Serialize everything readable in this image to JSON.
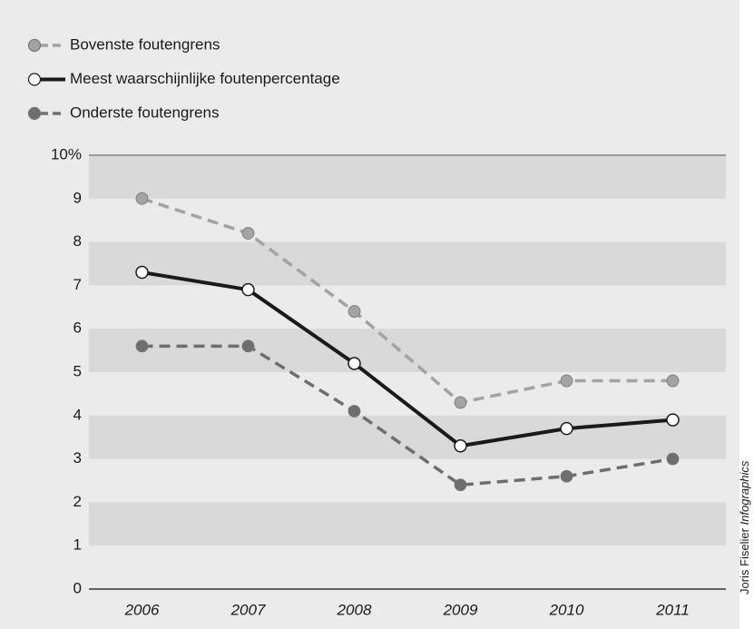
{
  "chart_data": {
    "type": "line",
    "categories": [
      "2006",
      "2007",
      "2008",
      "2009",
      "2010",
      "2011"
    ],
    "series": [
      {
        "name": "Bovenste foutengrens",
        "color": "#a3a3a3",
        "marker_fill": "#a3a3a3",
        "line_style": "dashed",
        "values": [
          9,
          8.2,
          6.4,
          4.3,
          4.8,
          4.8
        ]
      },
      {
        "name": "Meest waarschijnlijke foutenpercentage",
        "color": "#1a1a1a",
        "marker_fill": "#ffffff",
        "line_style": "solid",
        "values": [
          7.3,
          6.9,
          5.2,
          3.3,
          3.7,
          3.9
        ]
      },
      {
        "name": "Onderste foutengrens",
        "color": "#6e6e6e",
        "marker_fill": "#6e6e6e",
        "line_style": "dashed",
        "values": [
          5.6,
          5.6,
          4.1,
          2.4,
          2.6,
          3.0
        ]
      }
    ],
    "ylim": [
      0,
      10
    ],
    "yticks": [
      0,
      1,
      2,
      3,
      4,
      5,
      6,
      7,
      8,
      9,
      {
        "value": 10,
        "label": "10%"
      }
    ],
    "legend": "top-left",
    "credit": "Joris Fiselier",
    "credit_italic": "Infographics"
  }
}
